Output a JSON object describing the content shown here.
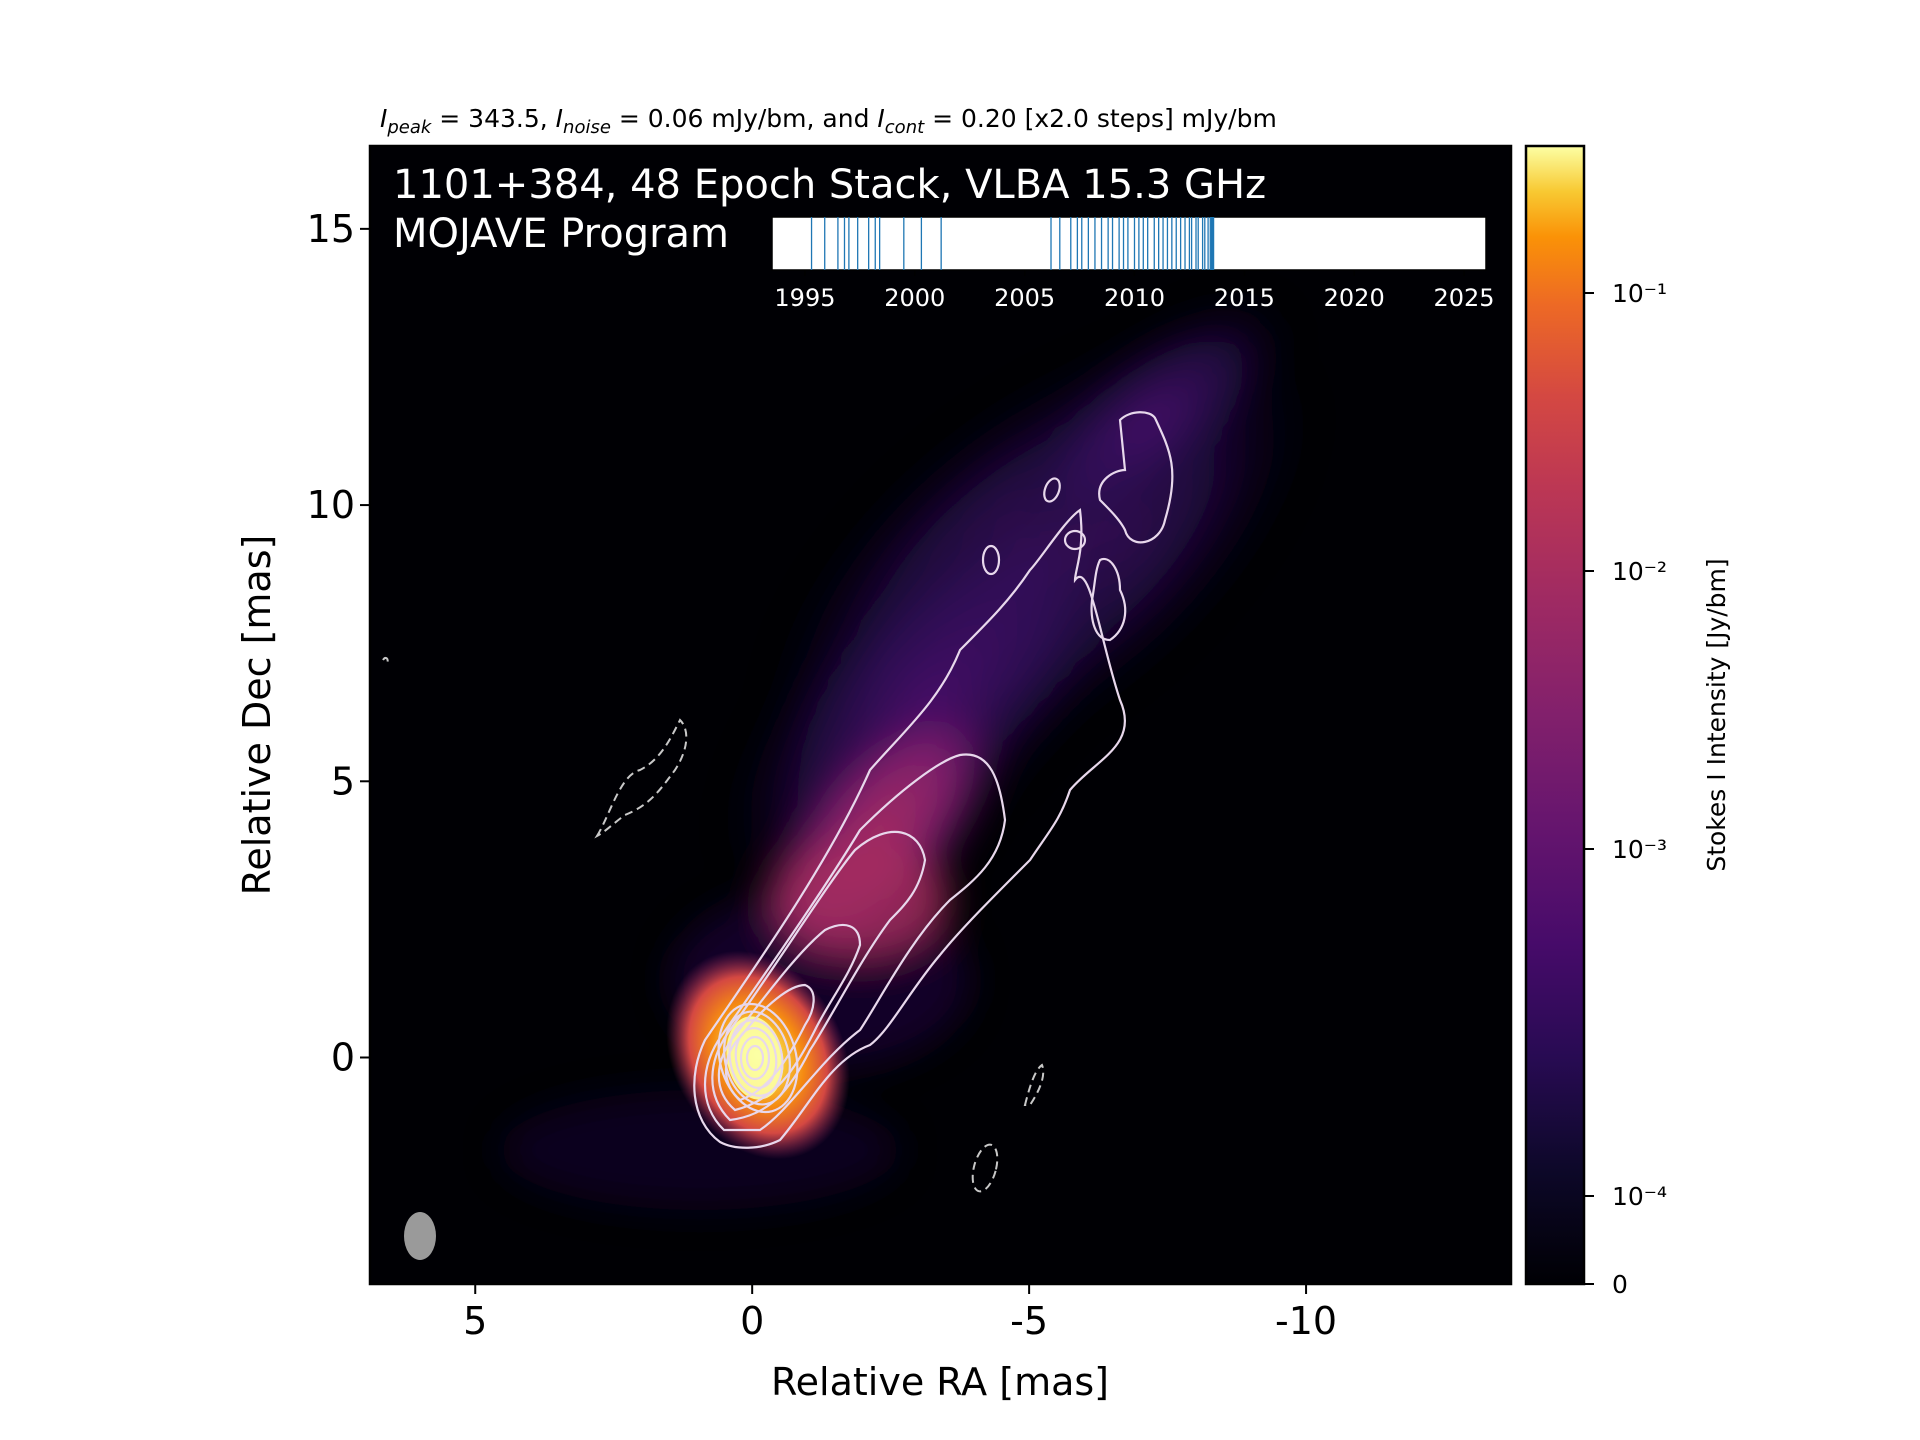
{
  "header": {
    "stats_parts": {
      "i1": "I",
      "s1": "peak",
      "t1": " = 343.5, ",
      "i2": "I",
      "s2": "noise",
      "t2": " = 0.06 mJy/bm, and ",
      "i3": "I",
      "s3": "cont",
      "t3": " = 0.20 [x2.0 steps] mJy/bm"
    }
  },
  "panel": {
    "title_line1": "1101+384, 48 Epoch Stack, VLBA 15.3 GHz",
    "title_line2": "MOJAVE Program"
  },
  "colors": {
    "background_image": "#000004",
    "contour": "#e8d8ec",
    "negative_contour": "#c8c8c8",
    "epoch_line": "#1f77b4",
    "beam": "#9a9a9a"
  },
  "chart_data": {
    "type": "heatmap",
    "colormap": "inferno",
    "x_axis": {
      "label": "Relative RA [mas]",
      "range": [
        6.9,
        -13.7
      ],
      "ticks": [
        5,
        0,
        -5,
        -10
      ],
      "tick_labels": [
        "5",
        "0",
        "-5",
        "-10"
      ]
    },
    "y_axis": {
      "label": "Relative Dec [mas]",
      "range": [
        -4.1,
        16.5
      ],
      "ticks": [
        0,
        5,
        10,
        15
      ],
      "tick_labels": [
        "0",
        "5",
        "10",
        "15"
      ]
    },
    "colorbar": {
      "label": "Stokes I Intensity [Jy/bm]",
      "scale": "log",
      "tick_labels": [
        "10⁻¹",
        "10⁻²",
        "10⁻³",
        "10⁻⁴",
        "0"
      ]
    },
    "epochs_inset": {
      "x_range": [
        1993.5,
        2026.0
      ],
      "tick_labels": [
        "1995",
        "2000",
        "2005",
        "2010",
        "2015",
        "2020",
        "2025"
      ],
      "epochs": [
        1995.3,
        1995.9,
        1996.5,
        1996.8,
        1997.0,
        1997.4,
        1997.9,
        1998.2,
        1998.4,
        1999.5,
        2000.3,
        2001.2,
        2006.2,
        2006.6,
        2007.1,
        2007.4,
        2007.6,
        2007.9,
        2008.2,
        2008.5,
        2008.8,
        2009.0,
        2009.3,
        2009.5,
        2009.7,
        2010.0,
        2010.2,
        2010.4,
        2010.6,
        2010.9,
        2011.1,
        2011.3,
        2011.5,
        2011.7,
        2011.9,
        2012.1,
        2012.3,
        2012.5,
        2012.6,
        2012.8,
        2012.9,
        2013.1,
        2013.2,
        2013.35,
        2013.45,
        2013.5,
        2013.55,
        2013.6
      ]
    },
    "peak_position": [
      0,
      0
    ],
    "beam_position": [
      6.0,
      -3.2
    ]
  }
}
